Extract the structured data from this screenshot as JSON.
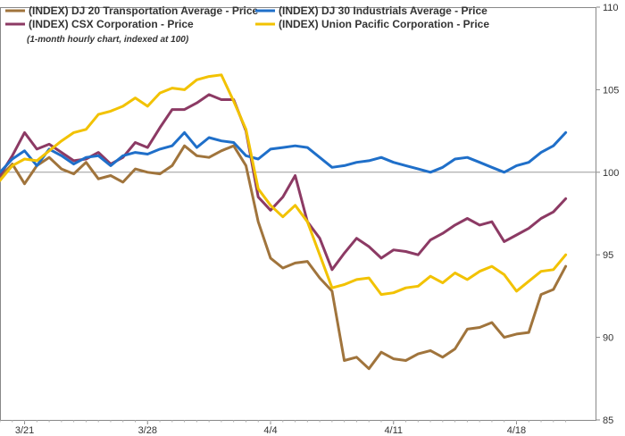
{
  "chart_data": {
    "type": "line",
    "subtitle": "(1-month hourly chart, indexed at 100)",
    "ylim": [
      85,
      110
    ],
    "y_ticks": [
      85,
      90,
      95,
      100,
      105,
      110
    ],
    "y_tick_labels": [
      "85",
      "90",
      "95",
      "100",
      "105",
      "110"
    ],
    "x_ticks": [
      {
        "label": "3/21",
        "x": 2
      },
      {
        "label": "3/28",
        "x": 12
      },
      {
        "label": "4/4",
        "x": 22
      },
      {
        "label": "4/11",
        "x": 32
      },
      {
        "label": "4/18",
        "x": 42
      }
    ],
    "baseline": 100,
    "grid": false,
    "legend_position": "top-left",
    "series": [
      {
        "name": "(INDEX) DJ 20 Transportation Average - Price",
        "color": "#A0743C",
        "x": [
          0,
          1,
          2,
          3,
          4,
          5,
          6,
          7,
          8,
          9,
          10,
          11,
          12,
          13,
          14,
          15,
          16,
          17,
          18,
          19,
          20,
          21,
          22,
          23,
          24,
          25,
          26,
          27,
          28,
          29,
          30,
          31,
          32,
          33,
          34,
          35,
          36,
          37,
          38,
          39,
          40,
          41,
          42,
          43,
          44,
          45,
          46
        ],
        "values": [
          99.7,
          100.5,
          99.3,
          100.4,
          100.9,
          100.2,
          99.9,
          100.6,
          99.6,
          99.8,
          99.4,
          100.2,
          100.0,
          99.9,
          100.4,
          101.6,
          101.0,
          100.9,
          101.3,
          101.6,
          100.4,
          97.0,
          94.8,
          94.2,
          94.5,
          94.6,
          93.6,
          92.8,
          88.6,
          88.8,
          88.1,
          89.1,
          88.7,
          88.6,
          89.0,
          89.2,
          88.8,
          89.3,
          90.5,
          90.6,
          90.9,
          90.0,
          90.2,
          90.3,
          92.6,
          92.9,
          94.3
        ]
      },
      {
        "name": "(INDEX) CSX Corporation - Price",
        "color": "#8C3A64",
        "x": [
          0,
          1,
          2,
          3,
          4,
          5,
          6,
          7,
          8,
          9,
          10,
          11,
          12,
          13,
          14,
          15,
          16,
          17,
          18,
          19,
          20,
          21,
          22,
          23,
          24,
          25,
          26,
          27,
          28,
          29,
          30,
          31,
          32,
          33,
          34,
          35,
          36,
          37,
          38,
          39,
          40,
          41,
          42,
          43,
          44,
          45,
          46
        ],
        "values": [
          99.8,
          101.0,
          102.4,
          101.4,
          101.7,
          101.2,
          100.7,
          100.8,
          101.2,
          100.5,
          100.9,
          101.8,
          101.5,
          102.7,
          103.8,
          103.8,
          104.2,
          104.7,
          104.4,
          104.4,
          102.5,
          98.5,
          97.7,
          98.5,
          99.8,
          97.0,
          96.0,
          94.1,
          95.1,
          96.0,
          95.5,
          94.8,
          95.3,
          95.2,
          95.0,
          95.9,
          96.3,
          96.8,
          97.2,
          96.8,
          97.0,
          95.8,
          96.2,
          96.6,
          97.2,
          97.6,
          98.4
        ]
      },
      {
        "name": "(INDEX) DJ 30 Industrials Average - Price",
        "color": "#1F6FC9",
        "x": [
          0,
          1,
          2,
          3,
          4,
          5,
          6,
          7,
          8,
          9,
          10,
          11,
          12,
          13,
          14,
          15,
          16,
          17,
          18,
          19,
          20,
          21,
          22,
          23,
          24,
          25,
          26,
          27,
          28,
          29,
          30,
          31,
          32,
          33,
          34,
          35,
          36,
          37,
          38,
          39,
          40,
          41,
          42,
          43,
          44,
          45,
          46
        ],
        "values": [
          100.0,
          100.8,
          101.3,
          100.4,
          101.4,
          101.0,
          100.5,
          100.9,
          101.0,
          100.4,
          101.0,
          101.2,
          101.1,
          101.4,
          101.6,
          102.4,
          101.5,
          102.1,
          101.9,
          101.8,
          101.0,
          100.8,
          101.4,
          101.5,
          101.6,
          101.5,
          100.9,
          100.3,
          100.4,
          100.6,
          100.7,
          100.9,
          100.6,
          100.4,
          100.2,
          100.0,
          100.3,
          100.8,
          100.9,
          100.6,
          100.3,
          100.0,
          100.4,
          100.6,
          101.2,
          101.6,
          102.4
        ]
      },
      {
        "name": "(INDEX) Union Pacific Corporation - Price",
        "color": "#F2C200",
        "x": [
          0,
          1,
          2,
          3,
          4,
          5,
          6,
          7,
          8,
          9,
          10,
          11,
          12,
          13,
          14,
          15,
          16,
          17,
          18,
          19,
          20,
          21,
          22,
          23,
          24,
          25,
          26,
          27,
          28,
          29,
          30,
          31,
          32,
          33,
          34,
          35,
          36,
          37,
          38,
          39,
          40,
          41,
          42,
          43,
          44,
          45,
          46
        ],
        "values": [
          99.5,
          100.4,
          100.8,
          100.7,
          101.3,
          101.9,
          102.4,
          102.6,
          103.5,
          103.7,
          104.0,
          104.5,
          104.0,
          104.8,
          105.1,
          105.0,
          105.6,
          105.8,
          105.9,
          104.3,
          102.6,
          99.0,
          98.0,
          97.3,
          98.0,
          97.0,
          95.0,
          93.0,
          93.2,
          93.5,
          93.6,
          92.6,
          92.7,
          93.0,
          93.1,
          93.7,
          93.3,
          93.9,
          93.5,
          94.0,
          94.3,
          93.8,
          92.8,
          93.4,
          94.0,
          94.1,
          95.0
        ]
      }
    ]
  }
}
